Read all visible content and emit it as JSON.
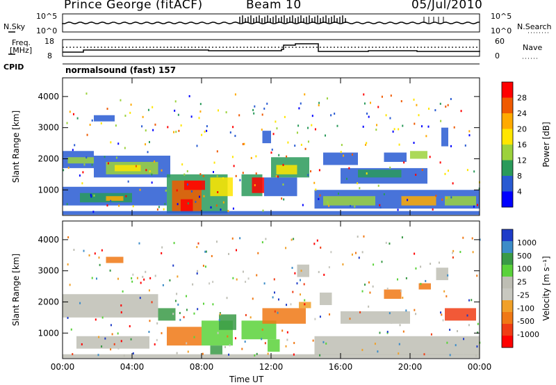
{
  "header": {
    "station": "Prince George (fitACF)",
    "beam": "Beam 10",
    "date": "05/Jul/2010"
  },
  "noise_panel": {
    "left_label": "N.Sky",
    "right_label": "N.Search",
    "left_ticks": [
      "10^5",
      "10^0"
    ],
    "right_ticks": [
      "10^5",
      "10^0"
    ]
  },
  "freq_panel": {
    "left_label_line1": "Freq.",
    "left_label_line2": "[MHz]",
    "cpid_label": "CPID",
    "right_label": "Nave",
    "left_ticks": [
      "18",
      "8"
    ],
    "right_ticks": [
      "60",
      "0"
    ]
  },
  "program": "normalsound (fast) 157",
  "chart_data": [
    {
      "type": "heatmap",
      "ylabel": "Slant Range [km]",
      "xlabel": "",
      "yticks": [
        "4000",
        "3000",
        "2000",
        "1000"
      ],
      "ytick_values": [
        4000,
        3000,
        2000,
        1000
      ],
      "ylim": [
        180,
        4600
      ],
      "xlim": [
        0,
        24
      ],
      "colorbar": {
        "label": "Power [dB]",
        "ticks": [
          "28",
          "24",
          "20",
          "16",
          "12",
          "8",
          "4"
        ],
        "colors": [
          "#ff0000",
          "#f05a00",
          "#ffaa00",
          "#ffe600",
          "#9cd23c",
          "#2a9a5a",
          "#285ad2",
          "#0000ff"
        ]
      }
    },
    {
      "type": "heatmap",
      "ylabel": "Slant Range [km]",
      "xlabel": "Time UT",
      "yticks": [
        "4000",
        "3000",
        "2000",
        "1000"
      ],
      "ytick_values": [
        4000,
        3000,
        2000,
        1000
      ],
      "ylim": [
        180,
        4600
      ],
      "xlim": [
        0,
        24
      ],
      "xticks": [
        "00:00",
        "04:00",
        "08:00",
        "12:00",
        "16:00",
        "20:00",
        "00:00"
      ],
      "xtick_values": [
        0,
        4,
        8,
        12,
        16,
        20,
        24
      ],
      "colorbar": {
        "label": "Velocity [m s⁻¹]",
        "ticks": [
          "1000",
          "500",
          "100",
          "25",
          "-25",
          "-100",
          "-500",
          "-1000"
        ],
        "colors": [
          "#1e3cc8",
          "#3c8cc8",
          "#3a9a46",
          "#5ad23a",
          "#bebeb4",
          "#c8c8c0",
          "#f0a028",
          "#f07814",
          "#f03c14",
          "#ff0000"
        ]
      }
    }
  ]
}
